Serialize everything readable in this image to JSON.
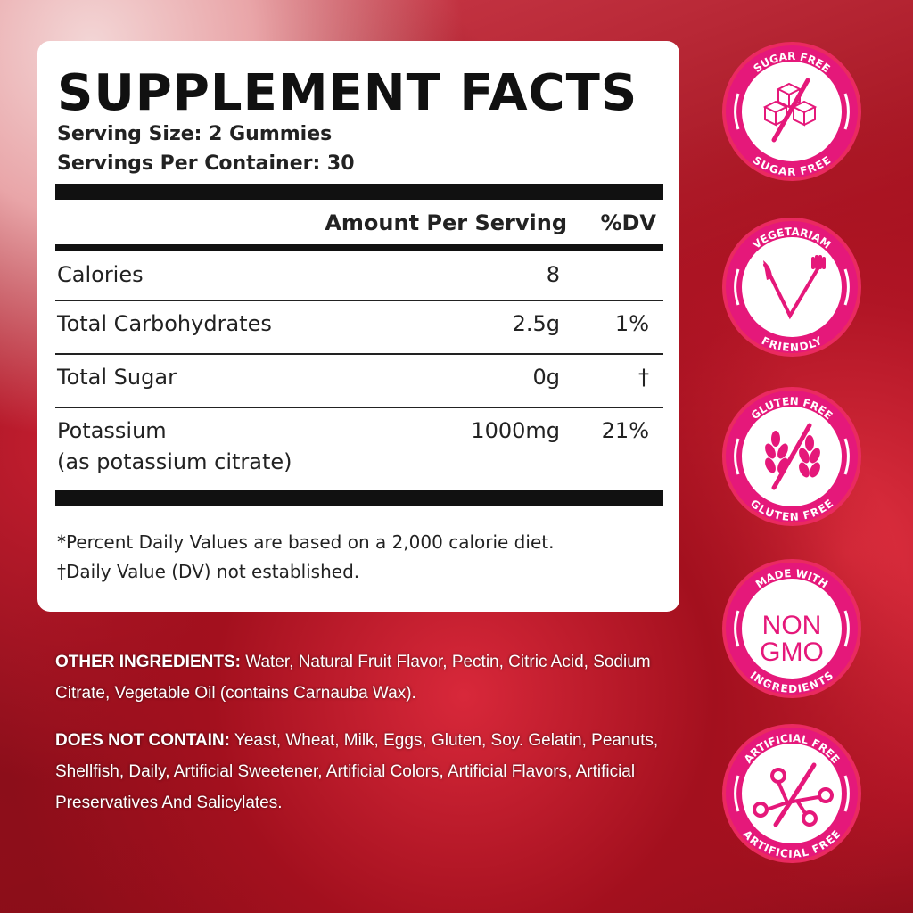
{
  "facts": {
    "title": "SUPPLEMENT FACTS",
    "serving_size": "Serving Size: 2 Gummies",
    "servings_per_container": "Servings Per Container: 30",
    "header_amount": "Amount Per Serving",
    "header_dv": "%DV",
    "rows": [
      {
        "name": "Calories",
        "amount": "8",
        "dv": ""
      },
      {
        "name": "Total Carbohydrates",
        "amount": "2.5g",
        "dv": "1%"
      },
      {
        "name": "Total Sugar",
        "amount": "0g",
        "dv": "†"
      },
      {
        "name": "Potassium",
        "sub": "(as potassium citrate)",
        "amount": "1000mg",
        "dv": "21%"
      }
    ],
    "note1": "*Percent Daily Values are based on a 2,000 calorie diet.",
    "note2": "†Daily Value (DV) not established."
  },
  "ingredients": {
    "other_label": "OTHER INGREDIENTS:",
    "other_text": " Water, Natural Fruit Flavor, Pectin, Citric Acid, Sodium Citrate, Vegetable Oil (contains Carnauba Wax).",
    "not_label": "DOES NOT CONTAIN:",
    "not_text": " Yeast, Wheat, Milk, Eggs, Gluten, Soy. Gelatin, Peanuts, Shellfish, Daily, Artificial Sweetener, Artificial Colors, Artificial Flavors, Artificial Preservatives And Salicylates."
  },
  "badges": [
    {
      "top": "SUGAR FREE",
      "bottom": "SUGAR FREE",
      "icon": "sugar-cubes-crossed-icon"
    },
    {
      "top": "VEGETARIAM",
      "bottom": "FRIENDLY",
      "icon": "knife-fork-v-icon"
    },
    {
      "top": "GLUTEN FREE",
      "bottom": "GLUTEN FREE",
      "icon": "wheat-crossed-icon"
    },
    {
      "top": "MADE WITH",
      "bottom": "INGREDIENTS",
      "center1": "NON",
      "center2": "GMO",
      "icon": "non-gmo-icon"
    },
    {
      "top": "ARTIFICIAL FREE",
      "bottom": "ARTIFICIAL FREE",
      "icon": "molecule-crossed-icon"
    }
  ],
  "colors": {
    "badge_pink": "#e5187a",
    "badge_ring": "#ea2a60"
  }
}
